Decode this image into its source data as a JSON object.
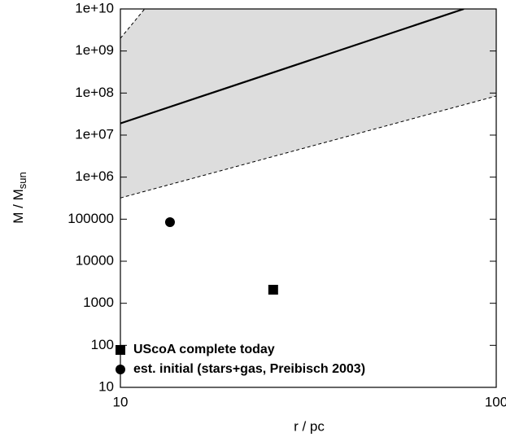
{
  "chart_data": {
    "type": "line",
    "xlog": true,
    "ylog": true,
    "xlim": [
      10,
      100
    ],
    "ylim": [
      10,
      10000000000
    ],
    "xticks": [
      10,
      100
    ],
    "yticks": [
      10,
      100,
      1000,
      10000,
      100000,
      {
        "value": 1000000,
        "label": "1e+06"
      },
      {
        "value": 10000000,
        "label": "1e+07"
      },
      {
        "value": 100000000,
        "label": "1e+08"
      },
      {
        "value": 1000000000,
        "label": "1e+09"
      },
      {
        "value": 10000000000,
        "label": "1e+10"
      }
    ],
    "x_label": "r / pc",
    "y_label": "M / M",
    "y_label_sub": "sun",
    "band_color": "#dddddd",
    "lines": [
      {
        "x": [
          10,
          82
        ],
        "values": [
          19000000,
          10000000000
        ],
        "dashed": false,
        "color": "#000000"
      },
      {
        "x": [
          10,
          11.6
        ],
        "values": [
          2000000000,
          10000000000
        ],
        "dashed": true,
        "color": "#000000"
      },
      {
        "x": [
          10,
          100
        ],
        "values": [
          320000,
          85000000
        ],
        "dashed": true,
        "color": "#000000"
      }
    ],
    "series": [
      {
        "name": "UScoA complete today",
        "marker": "square",
        "color": "#000000",
        "x": [
          25.5
        ],
        "values": [
          2100
        ]
      },
      {
        "name": "est. initial (stars+gas, Preibisch 2003)",
        "marker": "circle",
        "color": "#000000",
        "x": [
          13.55
        ],
        "values": [
          85000
        ]
      }
    ],
    "legend": "lower left"
  }
}
